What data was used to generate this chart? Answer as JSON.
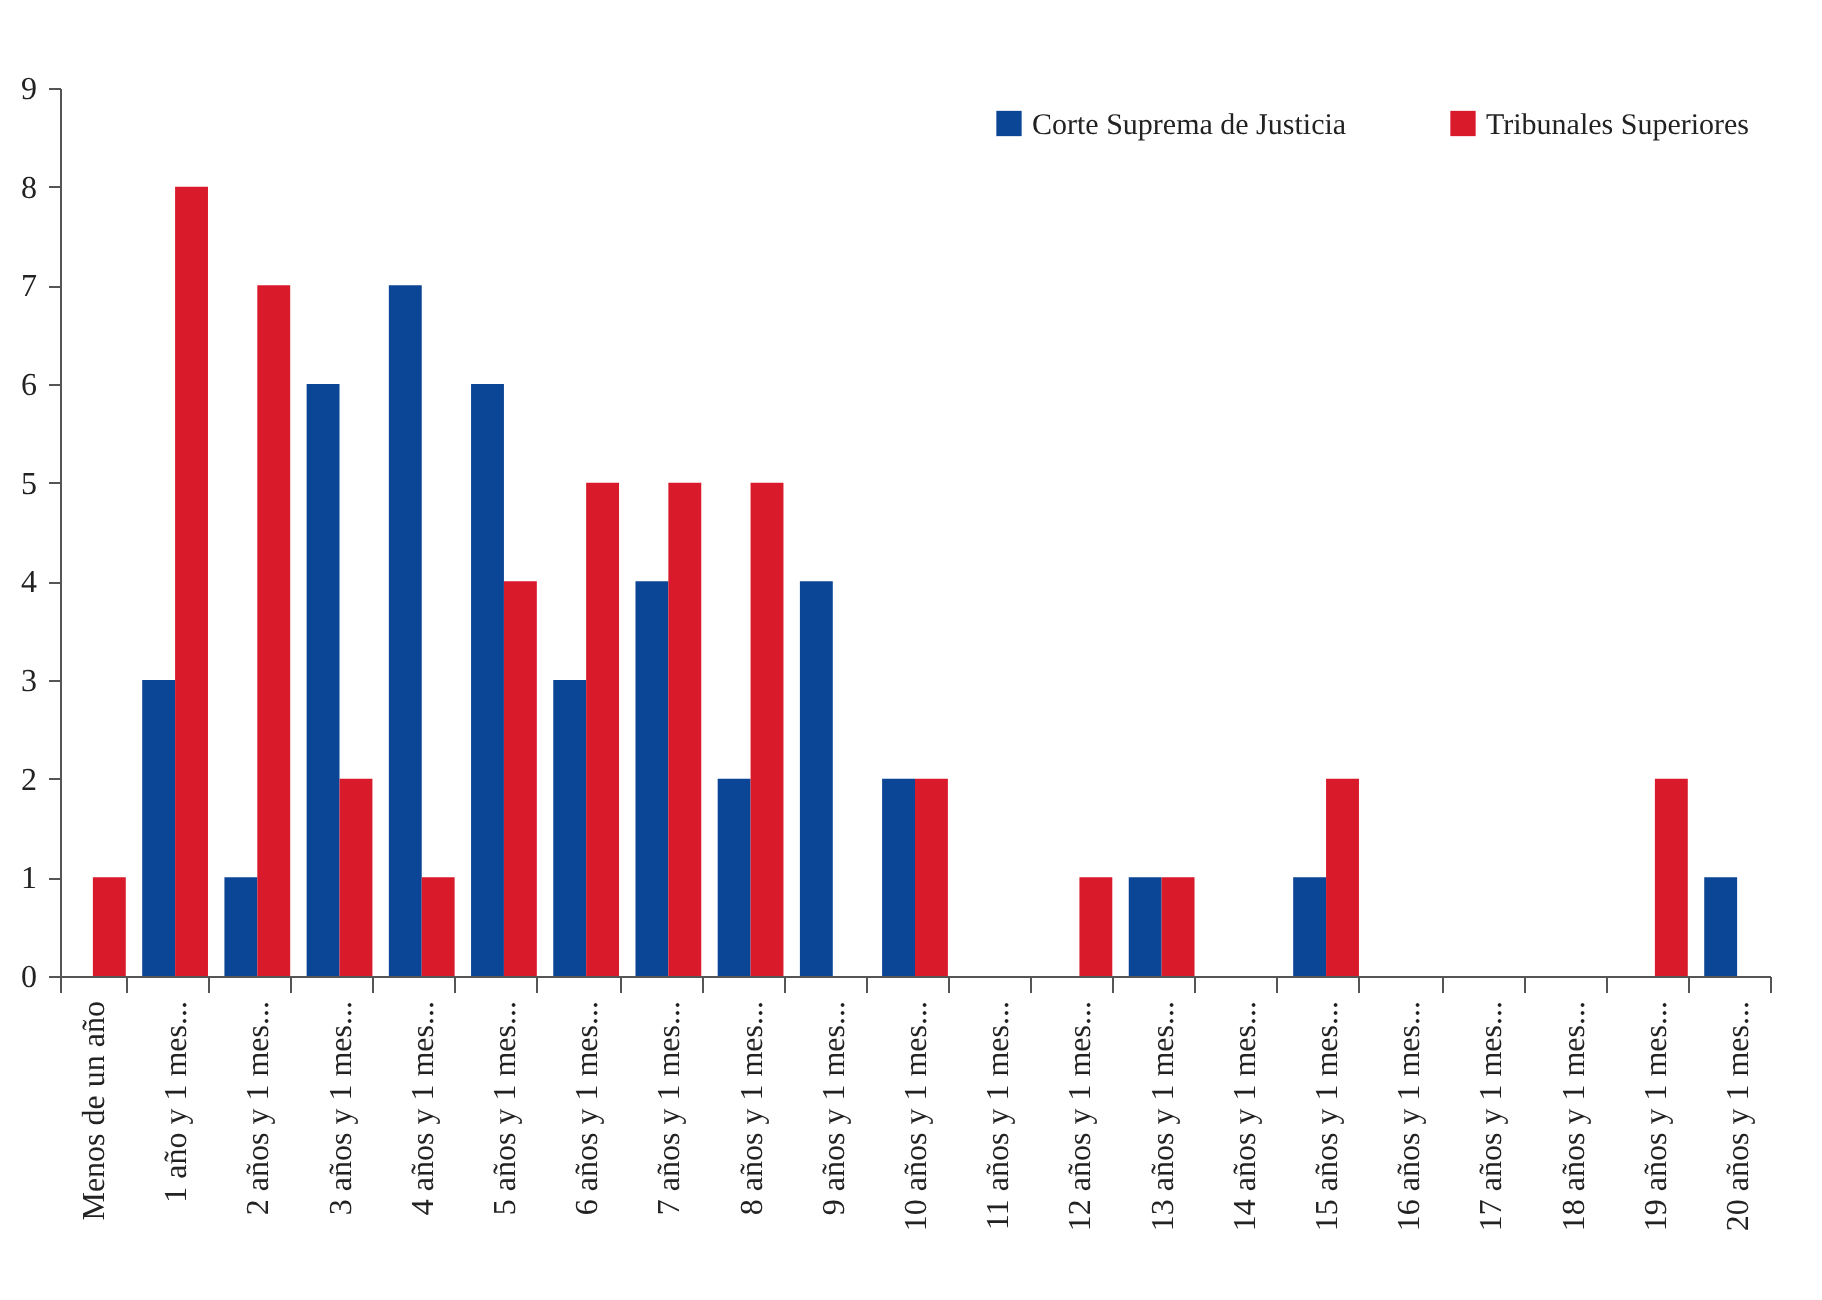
{
  "chart_data": {
    "type": "bar",
    "categories": [
      "Menos de un año",
      "1 año y 1 mes...",
      "2 años y 1 mes...",
      "3 años y 1 mes...",
      "4 años y 1 mes...",
      "5 años y 1 mes...",
      "6 años y 1 mes...",
      "7 años y 1 mes...",
      "8 años y 1 mes...",
      "9 años y 1 mes...",
      "10 años y 1 mes...",
      "11 años y 1 mes...",
      "12 años y 1 mes...",
      "13 años y 1 mes...",
      "14 años y 1 mes...",
      "15 años y 1 mes...",
      "16 años y 1 mes...",
      "17 años y 1 mes...",
      "18 años y 1 mes...",
      "19 años y 1 mes...",
      "20 años y 1 mes..."
    ],
    "series": [
      {
        "name": "Corte Suprema de Justicia",
        "color": "#0b4595",
        "values": [
          0,
          3,
          1,
          6,
          7,
          6,
          3,
          4,
          2,
          4,
          2,
          0,
          0,
          1,
          0,
          1,
          0,
          0,
          0,
          0,
          1
        ]
      },
      {
        "name": "Tribunales Superiores",
        "color": "#d81a2b",
        "values": [
          1,
          8,
          7,
          2,
          1,
          4,
          5,
          5,
          5,
          0,
          2,
          0,
          1,
          1,
          0,
          2,
          0,
          0,
          0,
          2,
          0
        ]
      }
    ],
    "ylim": [
      0,
      9
    ],
    "yticks": [
      0,
      1,
      2,
      3,
      4,
      5,
      6,
      7,
      8,
      9
    ],
    "grid": false,
    "legend": "top right"
  }
}
